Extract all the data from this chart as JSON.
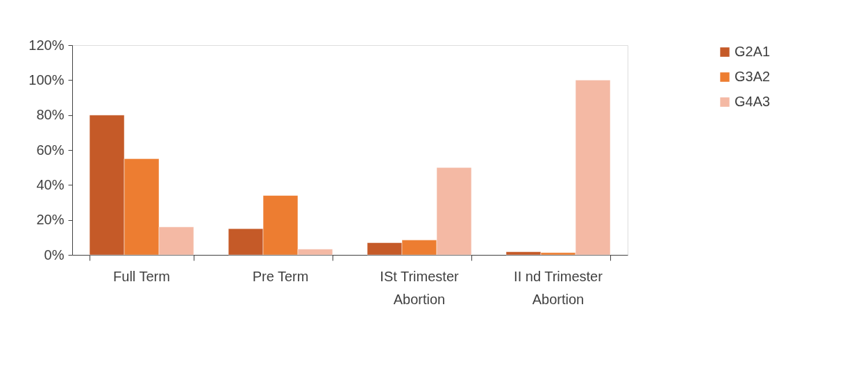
{
  "chart_data": {
    "type": "bar",
    "categories": [
      "Full Term",
      "Pre Term",
      "ISt Trimester Abortion",
      "II nd Trimester Abortion"
    ],
    "series": [
      {
        "name": "G2A1",
        "color": "#c55a28",
        "values": [
          80,
          15,
          7,
          1.8
        ]
      },
      {
        "name": "G3A2",
        "color": "#ed7d31",
        "values": [
          55,
          34,
          8.5,
          1.3
        ]
      },
      {
        "name": "G4A3",
        "color": "#f4b9a4",
        "values": [
          16,
          3.3,
          50,
          100
        ]
      }
    ],
    "ylim": [
      0,
      120
    ],
    "yticks": [
      {
        "value": 0,
        "label": "0%"
      },
      {
        "value": 20,
        "label": "20%"
      },
      {
        "value": 40,
        "label": "40%"
      },
      {
        "value": 60,
        "label": "60%"
      },
      {
        "value": 80,
        "label": "80%"
      },
      {
        "value": 100,
        "label": "100%"
      },
      {
        "value": 120,
        "label": "120%"
      }
    ],
    "grid": false,
    "legend": "right"
  }
}
